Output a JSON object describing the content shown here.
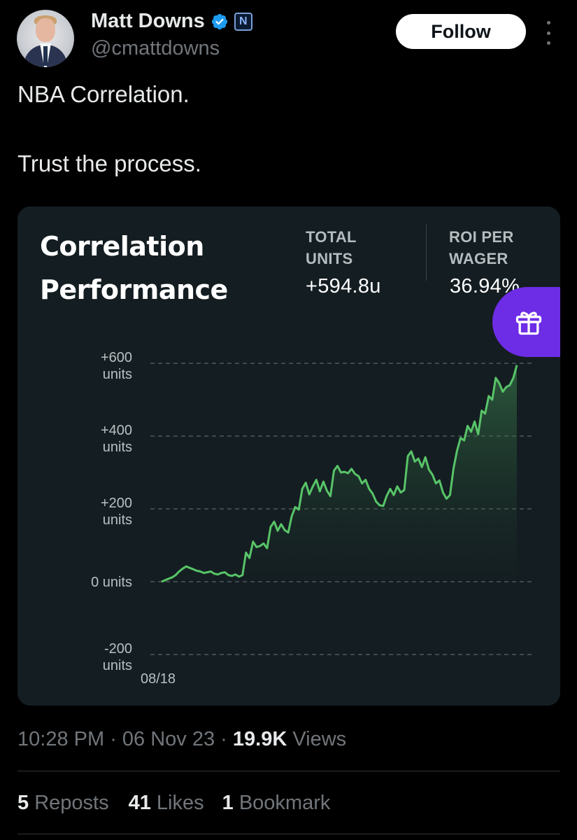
{
  "author": {
    "name": "Matt Downs",
    "handle": "@cmattdowns",
    "affiliation_badge": "N"
  },
  "follow_label": "Follow",
  "tweet": {
    "line1": "NBA Correlation.",
    "line2": "Trust the process."
  },
  "card": {
    "title_line1": "Correlation",
    "title_line2": "Performance",
    "total_units_label_1": "TOTAL",
    "total_units_label_2": "UNITS",
    "total_units_value": "+594.8u",
    "roi_label_1": "ROI PER",
    "roi_label_2": "WAGER",
    "roi_value": "36.94%",
    "gift_icon": "gift-icon"
  },
  "chart_data": {
    "type": "area",
    "xlabel": "",
    "ylabel": "",
    "x_tick_labels": [
      "08/18"
    ],
    "y_ticks": [
      {
        "value": 600,
        "line1": "+600",
        "line2": "units"
      },
      {
        "value": 400,
        "line1": "+400",
        "line2": "units"
      },
      {
        "value": 200,
        "line1": "+200",
        "line2": "units"
      },
      {
        "value": 0,
        "line1": "0 units",
        "line2": ""
      },
      {
        "value": -200,
        "line1": "-200",
        "line2": "units"
      }
    ],
    "ylim": [
      -200,
      600
    ],
    "grid": true,
    "line_color": "#58c468",
    "series": [
      {
        "values": [
          0,
          4,
          8,
          12,
          18,
          28,
          36,
          42,
          38,
          34,
          30,
          28,
          24,
          26,
          28,
          22,
          20,
          24,
          26,
          18,
          16,
          20,
          14,
          18,
          80,
          65,
          110,
          95,
          98,
          105,
          92,
          150,
          165,
          140,
          158,
          142,
          135,
          180,
          205,
          198,
          255,
          272,
          240,
          262,
          280,
          248,
          275,
          250,
          235,
          305,
          318,
          300,
          302,
          298,
          310,
          296,
          290,
          270,
          280,
          255,
          242,
          220,
          210,
          208,
          236,
          255,
          238,
          262,
          245,
          252,
          345,
          358,
          330,
          338,
          315,
          342,
          308,
          294,
          270,
          278,
          245,
          228,
          238,
          312,
          360,
          395,
          388,
          428,
          412,
          440,
          405,
          470,
          462,
          510,
          500,
          560,
          545,
          522,
          535,
          540,
          560,
          595
        ]
      }
    ]
  },
  "meta": {
    "time": "10:28 PM",
    "sep": " · ",
    "date": "06 Nov 23",
    "views_count": "19.9K",
    "views_label": " Views"
  },
  "engagement": {
    "reposts_count": "5",
    "reposts_label": " Reposts",
    "likes_count": "41",
    "likes_label": " Likes",
    "bookmarks_count": "1",
    "bookmarks_label": " Bookmark"
  }
}
